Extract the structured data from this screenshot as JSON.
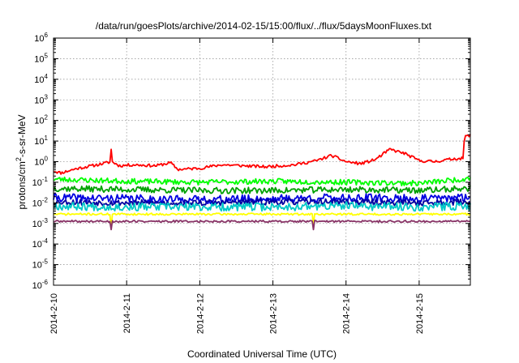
{
  "chart_data": {
    "type": "line",
    "title": "/data/run/goesPlots/archive/2014-02-15/15:00/flux/../flux/5daysMoonFluxes.txt",
    "xlabel": "Coordinated Universal Time (UTC)",
    "ylabel_parts": [
      "protons/cm",
      "2",
      "-s-sr-MeV"
    ],
    "y_scale": "log",
    "ylim_exponents": [
      -6,
      6
    ],
    "y_tick_exponents": [
      -6,
      -5,
      -4,
      -3,
      -2,
      -1,
      0,
      1,
      2,
      3,
      4,
      5,
      6
    ],
    "y_tick_base": "10",
    "x_ticks": [
      "2014-2-10",
      "2014-2-11",
      "2014-2-12",
      "2014-2-13",
      "2014-2-14",
      "2014-2-15"
    ],
    "x_range_days": [
      0,
      5.7
    ],
    "grid": true,
    "legend": "none",
    "series": [
      {
        "color": "#ff0000",
        "seed": 11,
        "noise": 0.07,
        "points": [
          [
            0,
            -0.45
          ],
          [
            0.1,
            -0.55
          ],
          [
            0.3,
            -0.35
          ],
          [
            0.6,
            -0.15
          ],
          [
            0.8,
            0.0
          ],
          [
            0.9,
            -0.2
          ],
          [
            1.1,
            -0.15
          ],
          [
            1.4,
            -0.2
          ],
          [
            1.6,
            -0.05
          ],
          [
            1.7,
            -0.38
          ],
          [
            2.0,
            -0.32
          ],
          [
            2.3,
            -0.15
          ],
          [
            2.6,
            -0.2
          ],
          [
            2.9,
            -0.25
          ],
          [
            3.3,
            -0.15
          ],
          [
            3.6,
            0.05
          ],
          [
            3.8,
            0.3
          ],
          [
            4.0,
            0.0
          ],
          [
            4.2,
            -0.1
          ],
          [
            4.4,
            0.1
          ],
          [
            4.6,
            0.6
          ],
          [
            4.8,
            0.4
          ],
          [
            5.0,
            0.05
          ],
          [
            5.2,
            0.0
          ],
          [
            5.5,
            0.15
          ],
          [
            5.6,
            0.15
          ],
          [
            5.62,
            1.2
          ],
          [
            5.7,
            1.3
          ]
        ],
        "spikes": [
          [
            0.79,
            0.6
          ]
        ]
      },
      {
        "color": "#00ff00",
        "seed": 23,
        "noise": 0.13,
        "points": [
          [
            0,
            -0.85
          ],
          [
            1.0,
            -0.95
          ],
          [
            2.0,
            -1.0
          ],
          [
            3.0,
            -0.95
          ],
          [
            4.0,
            -1.0
          ],
          [
            5.0,
            -1.05
          ],
          [
            5.6,
            -0.85
          ],
          [
            5.7,
            -0.75
          ]
        ],
        "spikes": []
      },
      {
        "color": "#00a000",
        "seed": 37,
        "noise": 0.15,
        "points": [
          [
            0,
            -1.3
          ],
          [
            1.0,
            -1.35
          ],
          [
            2.0,
            -1.4
          ],
          [
            3.0,
            -1.4
          ],
          [
            4.0,
            -1.35
          ],
          [
            5.0,
            -1.4
          ],
          [
            5.7,
            -1.3
          ]
        ],
        "spikes": []
      },
      {
        "color": "#0000e0",
        "seed": 41,
        "noise": 0.2,
        "points": [
          [
            0,
            -1.75
          ],
          [
            1.0,
            -1.8
          ],
          [
            2.0,
            -1.85
          ],
          [
            3.0,
            -1.8
          ],
          [
            4.0,
            -1.75
          ],
          [
            5.0,
            -1.8
          ],
          [
            5.7,
            -1.75
          ]
        ],
        "spikes": []
      },
      {
        "color": "#0000a0",
        "seed": 53,
        "noise": 0.15,
        "points": [
          [
            0,
            -1.95
          ],
          [
            1.0,
            -2.0
          ],
          [
            2.0,
            -2.0
          ],
          [
            3.0,
            -1.95
          ],
          [
            4.0,
            -1.95
          ],
          [
            5.0,
            -2.0
          ],
          [
            5.7,
            -1.95
          ]
        ],
        "spikes": []
      },
      {
        "color": "#00c8c8",
        "seed": 67,
        "noise": 0.2,
        "points": [
          [
            0,
            -2.15
          ],
          [
            1.0,
            -2.2
          ],
          [
            2.0,
            -2.2
          ],
          [
            3.0,
            -2.2
          ],
          [
            4.0,
            -2.15
          ],
          [
            5.0,
            -2.2
          ],
          [
            5.7,
            -2.15
          ]
        ],
        "spikes": []
      },
      {
        "color": "#ffff00",
        "seed": 71,
        "noise": 0.05,
        "points": [
          [
            0,
            -2.55
          ],
          [
            1.0,
            -2.55
          ],
          [
            2.0,
            -2.55
          ],
          [
            3.0,
            -2.55
          ],
          [
            4.0,
            -2.55
          ],
          [
            5.0,
            -2.55
          ],
          [
            5.7,
            -2.55
          ]
        ],
        "spikes": [
          [
            0.79,
            -3.2
          ],
          [
            3.55,
            -3.1
          ]
        ]
      },
      {
        "color": "#883366",
        "seed": 89,
        "noise": 0.05,
        "points": [
          [
            0,
            -2.9
          ],
          [
            1.0,
            -2.9
          ],
          [
            2.0,
            -2.9
          ],
          [
            3.0,
            -2.9
          ],
          [
            4.0,
            -2.9
          ],
          [
            5.0,
            -2.9
          ],
          [
            5.7,
            -2.9
          ]
        ],
        "spikes": [
          [
            0.79,
            -3.3
          ],
          [
            3.55,
            -3.3
          ]
        ]
      }
    ]
  }
}
